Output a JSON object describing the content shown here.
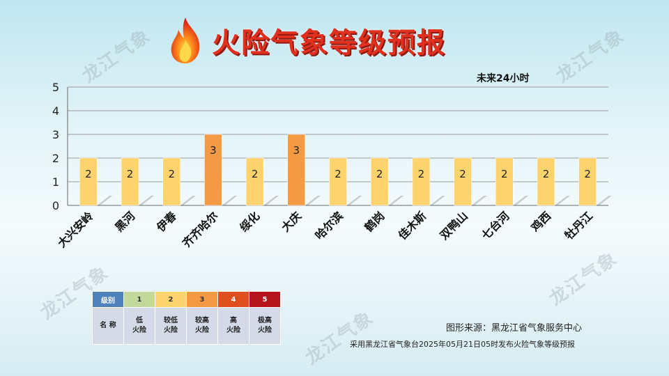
{
  "title": "火险气象等级预报",
  "subtitle": "未来24小时",
  "watermark": "龙江气象",
  "chart_data": {
    "type": "bar",
    "categories": [
      "大兴安岭",
      "黑河",
      "伊春",
      "齐齐哈尔",
      "绥化",
      "大庆",
      "哈尔滨",
      "鹤岗",
      "佳木斯",
      "双鸭山",
      "七台河",
      "鸡西",
      "牡丹江"
    ],
    "values": [
      2,
      2,
      2,
      3,
      2,
      3,
      2,
      2,
      2,
      2,
      2,
      2,
      2
    ],
    "ylim": [
      0,
      5
    ],
    "yticks": [
      0,
      1,
      2,
      3,
      4,
      5
    ],
    "grid": true,
    "level_colors": {
      "1": "#c3d89b",
      "2": "#fdd36d",
      "3": "#f59a44",
      "4": "#e0501e",
      "5": "#b5141b"
    }
  },
  "legend": {
    "head_label": "级别",
    "name_label": "名 称",
    "levels": [
      {
        "level": "1",
        "name": "低\n火险",
        "color": "#c3d89b"
      },
      {
        "level": "2",
        "name": "较低\n火险",
        "color": "#fdd36d"
      },
      {
        "level": "3",
        "name": "较高\n火险",
        "color": "#f59a44"
      },
      {
        "level": "4",
        "name": "高\n火险",
        "color": "#e0501e"
      },
      {
        "level": "5",
        "name": "极高\n火险",
        "color": "#b5141b"
      }
    ],
    "head_color": "#4f81bd"
  },
  "source": "图形来源：黑龙江省气象服务中心",
  "issued": "采用黑龙江省气象台2025年05月21日05时发布火险气象等级预报"
}
